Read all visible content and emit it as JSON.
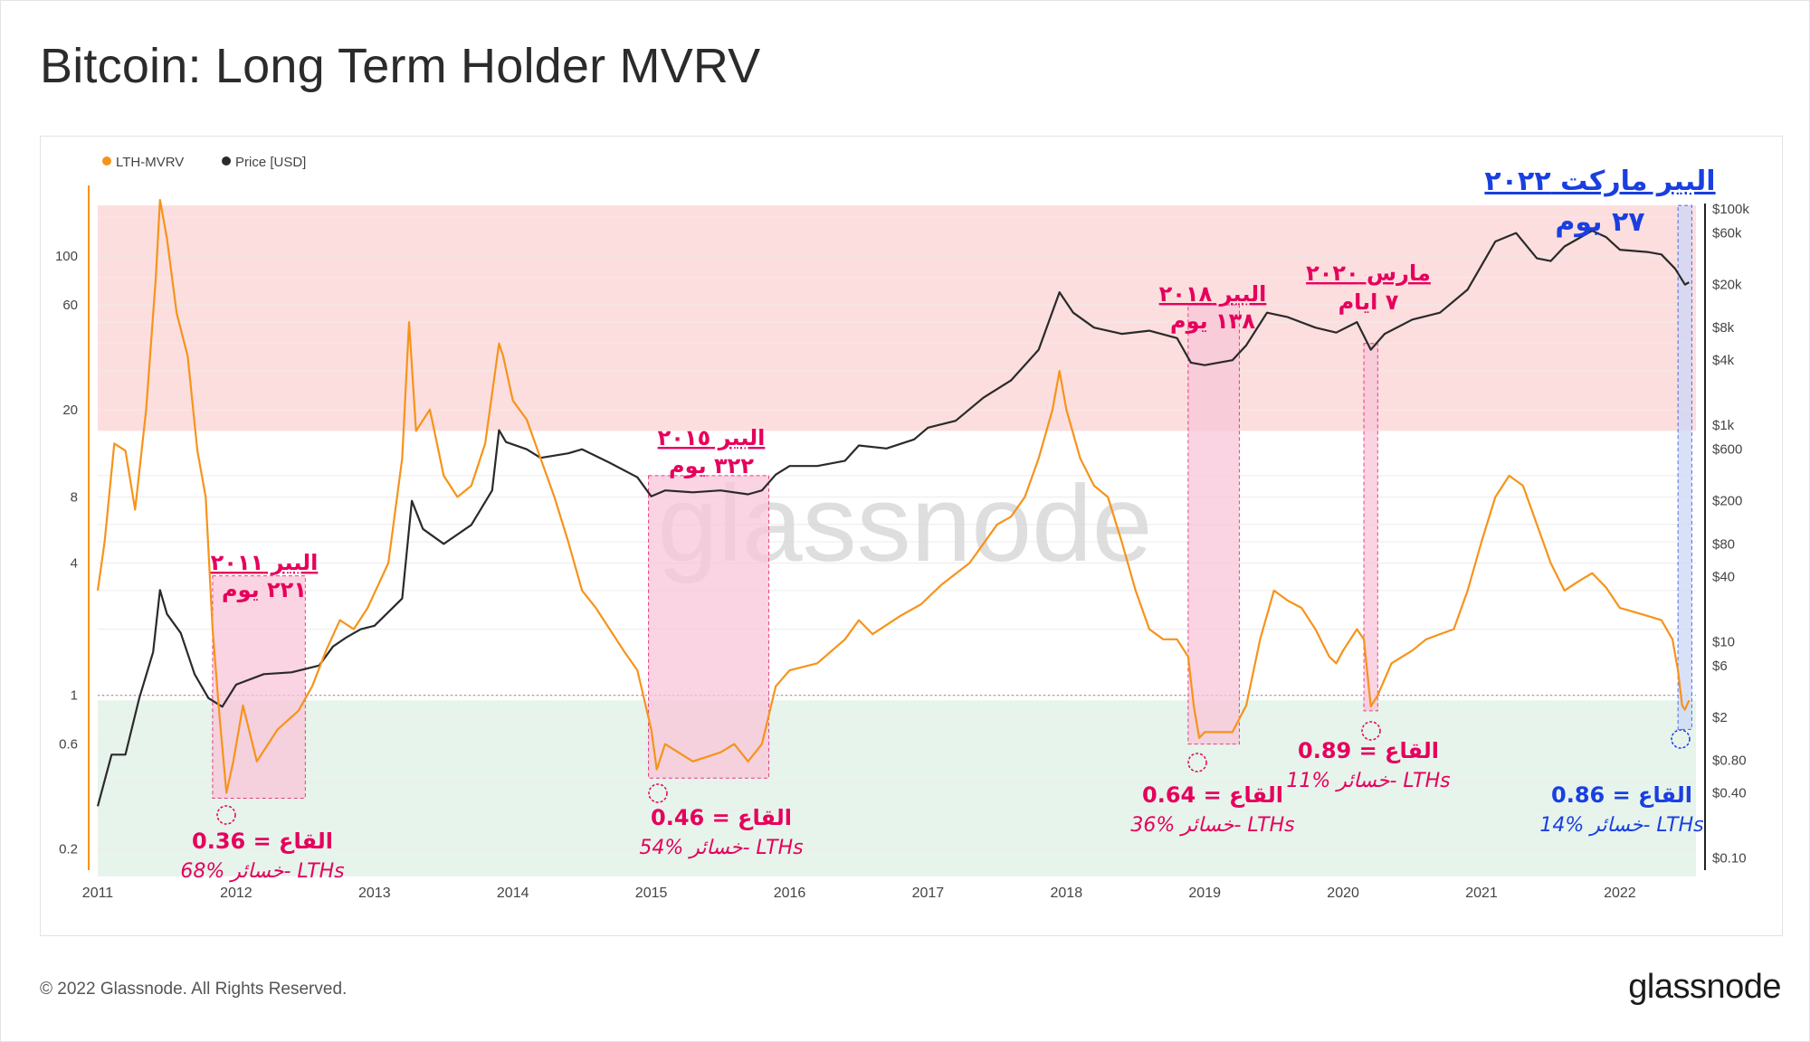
{
  "title": "Bitcoin: Long Term Holder MVRV",
  "footer": {
    "copyright": "© 2022 Glassnode. All Rights Reserved.",
    "brand": "glassnode"
  },
  "watermark": "glassnode",
  "colors": {
    "mvrv": "#f7931a",
    "price": "#2a2a2a",
    "annotation": "#e6005c",
    "bear_2022": "#1a3fe0",
    "top_band": "#fcdede",
    "bottom_band": "#e6f4ec",
    "bear_region": "#f9c6d9",
    "bear_2022_region": "#cdd8f7"
  },
  "chart_data": {
    "type": "line",
    "legend": [
      {
        "name": "LTH-MVRV",
        "color": "#f7931a"
      },
      {
        "name": "Price [USD]",
        "color": "#2a2a2a"
      }
    ],
    "x_ticks": [
      "2011",
      "2012",
      "2013",
      "2014",
      "2015",
      "2016",
      "2017",
      "2018",
      "2019",
      "2020",
      "2021",
      "2022"
    ],
    "left_axis": {
      "scale": "log",
      "ticks": [
        "100",
        "60",
        "20",
        "8",
        "4",
        "1",
        "0.6",
        "0.2"
      ]
    },
    "right_axis": {
      "scale": "log",
      "ticks": [
        "$100k",
        "$60k",
        "$20k",
        "$8k",
        "$4k",
        "$1k",
        "$600",
        "$200",
        "$80",
        "$40",
        "$10",
        "$6",
        "$2",
        "$0.80",
        "$0.40",
        "$0.10"
      ]
    },
    "bands": {
      "top_band": [
        16,
        170
      ],
      "bottom_band": [
        0.15,
        0.95
      ]
    },
    "series": [
      {
        "name": "LTH-MVRV",
        "points": [
          [
            2011.0,
            3.0
          ],
          [
            2011.05,
            5
          ],
          [
            2011.12,
            14
          ],
          [
            2011.2,
            13
          ],
          [
            2011.27,
            7
          ],
          [
            2011.35,
            20
          ],
          [
            2011.42,
            80
          ],
          [
            2011.45,
            180
          ],
          [
            2011.5,
            120
          ],
          [
            2011.57,
            55
          ],
          [
            2011.65,
            35
          ],
          [
            2011.72,
            13
          ],
          [
            2011.78,
            8
          ],
          [
            2011.83,
            2.0
          ],
          [
            2011.88,
            0.8
          ],
          [
            2011.93,
            0.36
          ],
          [
            2011.98,
            0.5
          ],
          [
            2012.05,
            0.9
          ],
          [
            2012.15,
            0.5
          ],
          [
            2012.3,
            0.7
          ],
          [
            2012.45,
            0.85
          ],
          [
            2012.55,
            1.1
          ],
          [
            2012.65,
            1.6
          ],
          [
            2012.75,
            2.2
          ],
          [
            2012.85,
            2.0
          ],
          [
            2012.95,
            2.5
          ],
          [
            2013.1,
            4
          ],
          [
            2013.2,
            12
          ],
          [
            2013.25,
            50
          ],
          [
            2013.3,
            16
          ],
          [
            2013.4,
            20
          ],
          [
            2013.5,
            10
          ],
          [
            2013.6,
            8
          ],
          [
            2013.7,
            9
          ],
          [
            2013.8,
            14
          ],
          [
            2013.9,
            40
          ],
          [
            2013.93,
            35
          ],
          [
            2014.0,
            22
          ],
          [
            2014.1,
            18
          ],
          [
            2014.2,
            12
          ],
          [
            2014.3,
            8
          ],
          [
            2014.4,
            5
          ],
          [
            2014.5,
            3
          ],
          [
            2014.6,
            2.5
          ],
          [
            2014.7,
            2.0
          ],
          [
            2014.8,
            1.6
          ],
          [
            2014.9,
            1.3
          ],
          [
            2015.0,
            0.7
          ],
          [
            2015.04,
            0.46
          ],
          [
            2015.1,
            0.6
          ],
          [
            2015.3,
            0.5
          ],
          [
            2015.5,
            0.55
          ],
          [
            2015.6,
            0.6
          ],
          [
            2015.7,
            0.5
          ],
          [
            2015.8,
            0.6
          ],
          [
            2015.9,
            1.1
          ],
          [
            2016.0,
            1.3
          ],
          [
            2016.2,
            1.4
          ],
          [
            2016.4,
            1.8
          ],
          [
            2016.5,
            2.2
          ],
          [
            2016.6,
            1.9
          ],
          [
            2016.8,
            2.3
          ],
          [
            2016.95,
            2.6
          ],
          [
            2017.1,
            3.2
          ],
          [
            2017.3,
            4
          ],
          [
            2017.5,
            6
          ],
          [
            2017.6,
            6.5
          ],
          [
            2017.7,
            8
          ],
          [
            2017.8,
            12
          ],
          [
            2017.9,
            20
          ],
          [
            2017.95,
            30
          ],
          [
            2018.0,
            20
          ],
          [
            2018.1,
            12
          ],
          [
            2018.2,
            9
          ],
          [
            2018.3,
            8
          ],
          [
            2018.4,
            5
          ],
          [
            2018.5,
            3
          ],
          [
            2018.6,
            2.0
          ],
          [
            2018.7,
            1.8
          ],
          [
            2018.8,
            1.8
          ],
          [
            2018.88,
            1.5
          ],
          [
            2018.92,
            0.9
          ],
          [
            2018.96,
            0.64
          ],
          [
            2019.0,
            0.68
          ],
          [
            2019.2,
            0.68
          ],
          [
            2019.3,
            0.9
          ],
          [
            2019.4,
            1.8
          ],
          [
            2019.5,
            3.0
          ],
          [
            2019.6,
            2.7
          ],
          [
            2019.7,
            2.5
          ],
          [
            2019.8,
            2.0
          ],
          [
            2019.9,
            1.5
          ],
          [
            2019.95,
            1.4
          ],
          [
            2020.0,
            1.6
          ],
          [
            2020.1,
            2.0
          ],
          [
            2020.15,
            1.8
          ],
          [
            2020.2,
            0.89
          ],
          [
            2020.25,
            1.0
          ],
          [
            2020.35,
            1.4
          ],
          [
            2020.5,
            1.6
          ],
          [
            2020.6,
            1.8
          ],
          [
            2020.7,
            1.9
          ],
          [
            2020.8,
            2.0
          ],
          [
            2020.9,
            3.0
          ],
          [
            2021.0,
            5
          ],
          [
            2021.1,
            8
          ],
          [
            2021.2,
            10
          ],
          [
            2021.3,
            9
          ],
          [
            2021.4,
            6
          ],
          [
            2021.5,
            4
          ],
          [
            2021.6,
            3.0
          ],
          [
            2021.7,
            3.3
          ],
          [
            2021.8,
            3.6
          ],
          [
            2021.9,
            3.1
          ],
          [
            2022.0,
            2.5
          ],
          [
            2022.1,
            2.4
          ],
          [
            2022.2,
            2.3
          ],
          [
            2022.3,
            2.2
          ],
          [
            2022.38,
            1.8
          ],
          [
            2022.42,
            1.3
          ],
          [
            2022.45,
            0.9
          ],
          [
            2022.47,
            0.86
          ],
          [
            2022.5,
            0.95
          ]
        ]
      },
      {
        "name": "Price [USD]",
        "points": [
          [
            2011.0,
            0.3
          ],
          [
            2011.1,
            0.9
          ],
          [
            2011.2,
            0.9
          ],
          [
            2011.3,
            3
          ],
          [
            2011.4,
            8
          ],
          [
            2011.45,
            30
          ],
          [
            2011.5,
            18
          ],
          [
            2011.6,
            12
          ],
          [
            2011.7,
            5
          ],
          [
            2011.8,
            3
          ],
          [
            2011.9,
            2.5
          ],
          [
            2012.0,
            4
          ],
          [
            2012.2,
            5
          ],
          [
            2012.4,
            5.2
          ],
          [
            2012.6,
            6
          ],
          [
            2012.7,
            9
          ],
          [
            2012.8,
            11
          ],
          [
            2012.9,
            13
          ],
          [
            2013.0,
            14
          ],
          [
            2013.2,
            25
          ],
          [
            2013.27,
            200
          ],
          [
            2013.35,
            110
          ],
          [
            2013.5,
            80
          ],
          [
            2013.7,
            120
          ],
          [
            2013.85,
            250
          ],
          [
            2013.9,
            900
          ],
          [
            2013.95,
            700
          ],
          [
            2014.1,
            600
          ],
          [
            2014.2,
            500
          ],
          [
            2014.4,
            550
          ],
          [
            2014.5,
            600
          ],
          [
            2014.7,
            450
          ],
          [
            2014.9,
            330
          ],
          [
            2015.0,
            220
          ],
          [
            2015.1,
            250
          ],
          [
            2015.3,
            240
          ],
          [
            2015.5,
            250
          ],
          [
            2015.7,
            230
          ],
          [
            2015.8,
            250
          ],
          [
            2015.9,
            350
          ],
          [
            2016.0,
            420
          ],
          [
            2016.2,
            420
          ],
          [
            2016.4,
            470
          ],
          [
            2016.5,
            650
          ],
          [
            2016.7,
            610
          ],
          [
            2016.9,
            740
          ],
          [
            2017.0,
            950
          ],
          [
            2017.2,
            1100
          ],
          [
            2017.4,
            1800
          ],
          [
            2017.6,
            2600
          ],
          [
            2017.8,
            5000
          ],
          [
            2017.95,
            17000
          ],
          [
            2018.05,
            11000
          ],
          [
            2018.2,
            8000
          ],
          [
            2018.4,
            7000
          ],
          [
            2018.6,
            7500
          ],
          [
            2018.8,
            6400
          ],
          [
            2018.9,
            3800
          ],
          [
            2019.0,
            3600
          ],
          [
            2019.2,
            4000
          ],
          [
            2019.3,
            5500
          ],
          [
            2019.45,
            11000
          ],
          [
            2019.6,
            10000
          ],
          [
            2019.8,
            8000
          ],
          [
            2019.95,
            7200
          ],
          [
            2020.1,
            9000
          ],
          [
            2020.2,
            5000
          ],
          [
            2020.3,
            7000
          ],
          [
            2020.5,
            9500
          ],
          [
            2020.7,
            11000
          ],
          [
            2020.9,
            18000
          ],
          [
            2021.0,
            30000
          ],
          [
            2021.1,
            50000
          ],
          [
            2021.25,
            60000
          ],
          [
            2021.4,
            35000
          ],
          [
            2021.5,
            33000
          ],
          [
            2021.6,
            45000
          ],
          [
            2021.8,
            63000
          ],
          [
            2021.9,
            55000
          ],
          [
            2022.0,
            42000
          ],
          [
            2022.2,
            40000
          ],
          [
            2022.3,
            38000
          ],
          [
            2022.4,
            28000
          ],
          [
            2022.47,
            20000
          ],
          [
            2022.5,
            21000
          ]
        ]
      }
    ],
    "bears": [
      {
        "x0": 2011.83,
        "x1": 2012.5,
        "title": "البير ٢٠١١",
        "days": "٢٢١ يوم",
        "bottom": "القاع = 0.36",
        "loss": "خسائر %68- LTHs"
      },
      {
        "x0": 2014.98,
        "x1": 2015.85,
        "title": "البير ٢٠١٥",
        "days": "٣٢٢ يوم",
        "bottom": "القاع = 0.46",
        "loss": "خسائر %54- LTHs"
      },
      {
        "x0": 2018.88,
        "x1": 2019.25,
        "title": "البير ٢٠١٨",
        "days": "١٣٨ يوم",
        "bottom": "القاع = 0.64",
        "loss": "خسائر %36- LTHs"
      },
      {
        "x0": 2020.15,
        "x1": 2020.25,
        "title": "مارس ٢٠٢٠",
        "days": "٧ ايام",
        "bottom": "القاع = 0.89",
        "loss": "خسائر %11- LTHs"
      },
      {
        "x0": 2022.42,
        "x1": 2022.52,
        "title": "البير ماركت ٢٠٢٢",
        "days": "٢٧ يوم",
        "bottom": "القاع = 0.86",
        "loss": "خسائر %14- LTHs"
      }
    ]
  }
}
